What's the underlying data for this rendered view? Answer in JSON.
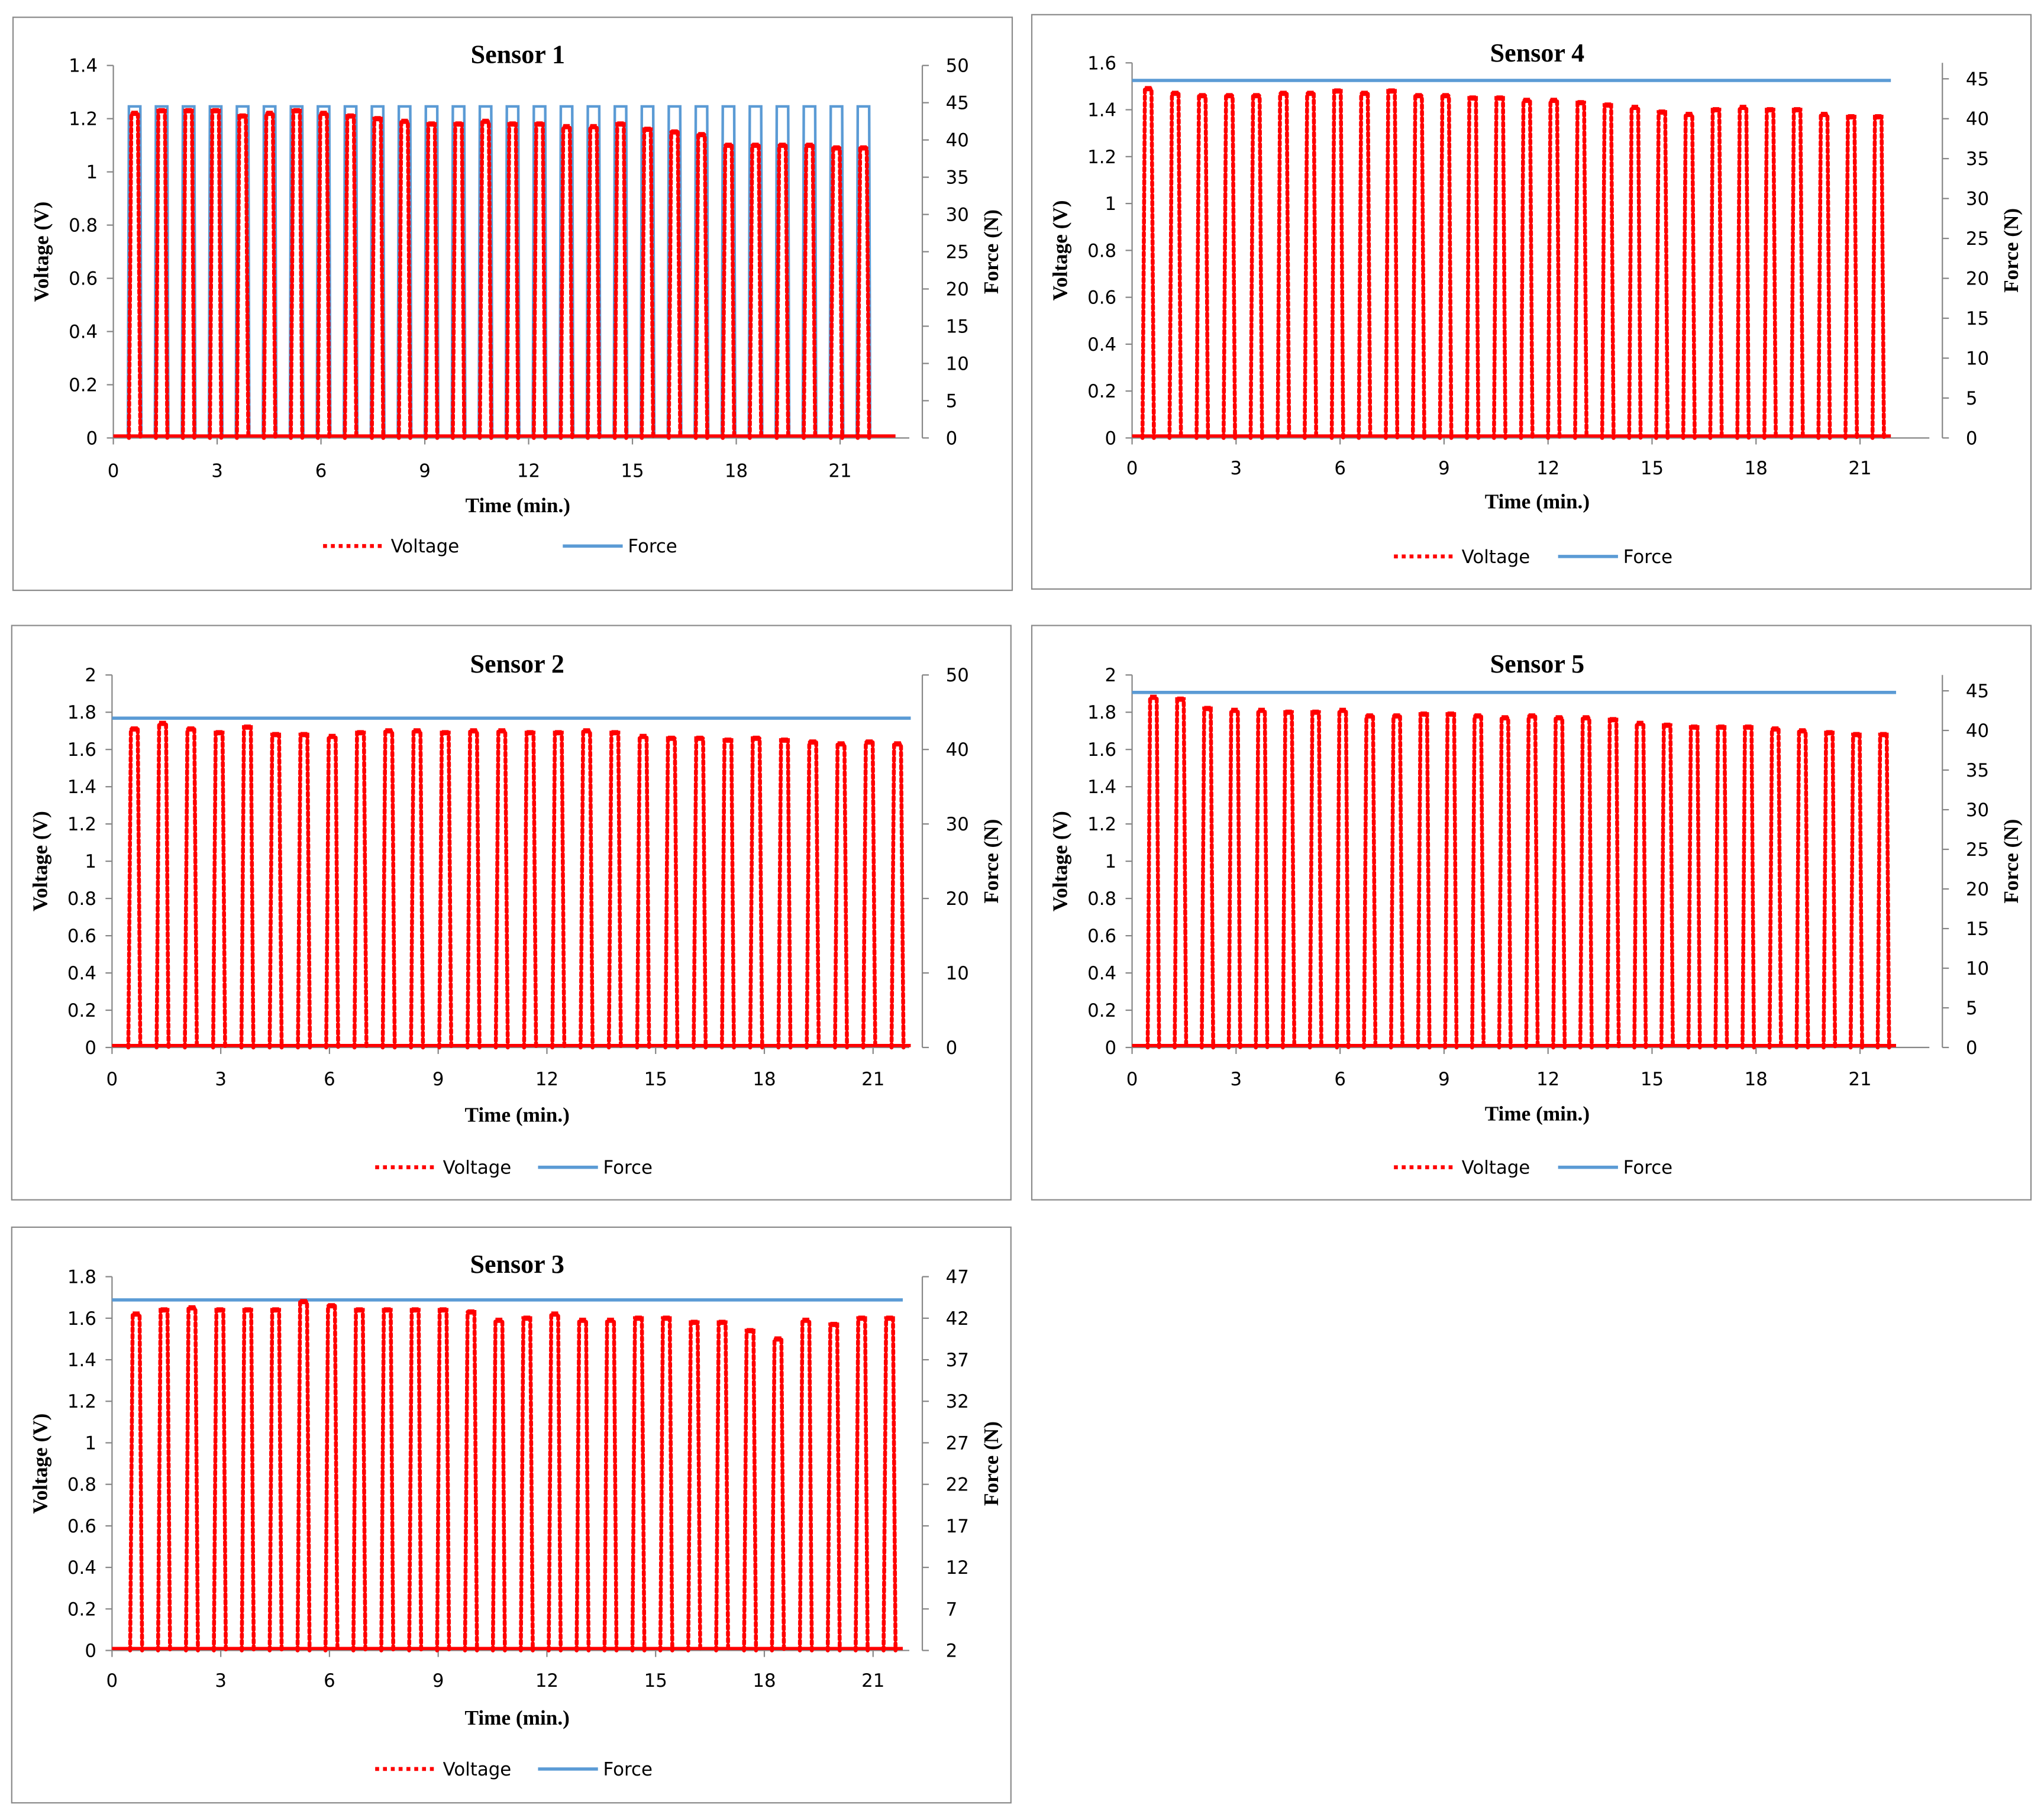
{
  "colors": {
    "voltage": "#ff0000",
    "force": "#5b9bd5",
    "axis": "#868686",
    "text": "#000000",
    "border": "#8a8a8a"
  },
  "chart_data": [
    {
      "type": "line",
      "title": "Sensor 1",
      "xlabel": "Time (min.)",
      "ylabel": "Voltage (V)",
      "y2label": "Force (N)",
      "xlim": [
        0,
        23
      ],
      "xticks": [
        0,
        3,
        6,
        9,
        12,
        15,
        18,
        21
      ],
      "ylim": [
        0,
        1.4
      ],
      "yticks": [
        "0",
        "0.2",
        "0.4",
        "0.6",
        "0.8",
        "1",
        "1.2",
        "1.4"
      ],
      "y2lim": [
        0,
        50
      ],
      "y2ticks": [
        "0",
        "5",
        "10",
        "15",
        "20",
        "25",
        "30",
        "35",
        "40",
        "45",
        "50"
      ],
      "legend": [
        "Voltage",
        "Force"
      ],
      "force": {
        "mode": "cycles",
        "value": 44.5
      },
      "cycles": {
        "first": 0.45,
        "period": 0.78,
        "count": 28,
        "width": 0.33
      },
      "peaks": [
        1.22,
        1.23,
        1.23,
        1.23,
        1.21,
        1.22,
        1.23,
        1.22,
        1.21,
        1.2,
        1.19,
        1.18,
        1.18,
        1.19,
        1.18,
        1.18,
        1.17,
        1.17,
        1.18,
        1.16,
        1.15,
        1.14,
        1.1,
        1.1,
        1.1,
        1.1,
        1.09,
        1.09
      ]
    },
    {
      "type": "line",
      "title": "Sensor 2",
      "xlabel": "Time (min.)",
      "ylabel": "Voltage (V)",
      "y2label": "Force (N)",
      "xlim": [
        0,
        22
      ],
      "xticks": [
        0,
        3,
        6,
        9,
        12,
        15,
        18,
        21
      ],
      "ylim": [
        0,
        2
      ],
      "yticks": [
        "0",
        "0.2",
        "0.4",
        "0.6",
        "0.8",
        "1",
        "1.2",
        "1.4",
        "1.6",
        "1.8",
        "2"
      ],
      "y2lim": [
        0,
        50
      ],
      "y2ticks": [
        "0",
        "10",
        "20",
        "30",
        "40",
        "50"
      ],
      "legend": [
        "Voltage",
        "Force"
      ],
      "force": {
        "mode": "constant",
        "value": 44.2
      },
      "cycles": {
        "first": 0.45,
        "period": 0.78,
        "count": 28,
        "width": 0.33
      },
      "peaks": [
        1.71,
        1.74,
        1.71,
        1.69,
        1.72,
        1.68,
        1.68,
        1.67,
        1.69,
        1.7,
        1.7,
        1.69,
        1.7,
        1.7,
        1.69,
        1.69,
        1.7,
        1.69,
        1.67,
        1.66,
        1.66,
        1.65,
        1.66,
        1.65,
        1.64,
        1.63,
        1.64,
        1.63
      ]
    },
    {
      "type": "line",
      "title": "Sensor 3",
      "xlabel": "Time (min.)",
      "ylabel": "Voltage (V)",
      "y2label": "Force (N)",
      "xlim": [
        0,
        22
      ],
      "xticks": [
        0,
        3,
        6,
        9,
        12,
        15,
        18,
        21
      ],
      "ylim": [
        0,
        1.8
      ],
      "yticks": [
        "0",
        "0.2",
        "0.4",
        "0.6",
        "0.8",
        "1",
        "1.2",
        "1.4",
        "1.6",
        "1.8"
      ],
      "y2lim": [
        2,
        47
      ],
      "y2ticks": [
        "2",
        "7",
        "12",
        "17",
        "22",
        "27",
        "32",
        "37",
        "42",
        "47"
      ],
      "legend": [
        "Voltage",
        "Force"
      ],
      "force": {
        "mode": "constant",
        "value": 44.2
      },
      "cycles": {
        "first": 0.5,
        "period": 0.77,
        "count": 28,
        "width": 0.33
      },
      "peaks": [
        1.62,
        1.64,
        1.65,
        1.64,
        1.64,
        1.64,
        1.68,
        1.66,
        1.64,
        1.64,
        1.64,
        1.64,
        1.63,
        1.59,
        1.6,
        1.62,
        1.59,
        1.59,
        1.6,
        1.6,
        1.58,
        1.58,
        1.54,
        1.5,
        1.59,
        1.57,
        1.6,
        1.6
      ]
    },
    {
      "type": "line",
      "title": "Sensor 4",
      "xlabel": "Time (min.)",
      "ylabel": "Voltage (V)",
      "y2label": "Force (N)",
      "xlim": [
        0,
        23
      ],
      "xticks": [
        0,
        3,
        6,
        9,
        12,
        15,
        18,
        21
      ],
      "ylim": [
        0,
        1.6
      ],
      "yticks": [
        "0",
        "0.2",
        "0.4",
        "0.6",
        "0.8",
        "1",
        "1.2",
        "1.4",
        "1.6"
      ],
      "y2lim": [
        0,
        47
      ],
      "y2ticks": [
        "0",
        "5",
        "10",
        "15",
        "20",
        "25",
        "30",
        "35",
        "40",
        "45"
      ],
      "legend": [
        "Voltage",
        "Force"
      ],
      "force": {
        "mode": "constant",
        "value": 44.8
      },
      "cycles": {
        "first": 0.3,
        "period": 0.78,
        "count": 28,
        "width": 0.33
      },
      "peaks": [
        1.49,
        1.47,
        1.46,
        1.46,
        1.46,
        1.47,
        1.47,
        1.48,
        1.47,
        1.48,
        1.46,
        1.46,
        1.45,
        1.45,
        1.44,
        1.44,
        1.43,
        1.42,
        1.41,
        1.39,
        1.38,
        1.4,
        1.41,
        1.4,
        1.4,
        1.38,
        1.37,
        1.37
      ]
    },
    {
      "type": "line",
      "title": "Sensor 5",
      "xlabel": "Time (min.)",
      "ylabel": "Voltage (V)",
      "y2label": "Force (N)",
      "xlim": [
        0,
        23
      ],
      "xticks": [
        0,
        3,
        6,
        9,
        12,
        15,
        18,
        21
      ],
      "ylim": [
        0,
        2
      ],
      "yticks": [
        "0",
        "0.2",
        "0.4",
        "0.6",
        "0.8",
        "1",
        "1.2",
        "1.4",
        "1.6",
        "1.8",
        "2"
      ],
      "y2lim": [
        0,
        47
      ],
      "y2ticks": [
        "0",
        "5",
        "10",
        "15",
        "20",
        "25",
        "30",
        "35",
        "40",
        "45"
      ],
      "legend": [
        "Voltage",
        "Force"
      ],
      "force": {
        "mode": "constant",
        "value": 44.8
      },
      "cycles": {
        "first": 0.45,
        "period": 0.78,
        "count": 28,
        "width": 0.33
      },
      "peaks": [
        1.88,
        1.87,
        1.82,
        1.81,
        1.81,
        1.8,
        1.8,
        1.81,
        1.78,
        1.78,
        1.79,
        1.79,
        1.78,
        1.77,
        1.78,
        1.77,
        1.77,
        1.76,
        1.74,
        1.73,
        1.72,
        1.72,
        1.72,
        1.71,
        1.7,
        1.69,
        1.68,
        1.68
      ]
    }
  ]
}
